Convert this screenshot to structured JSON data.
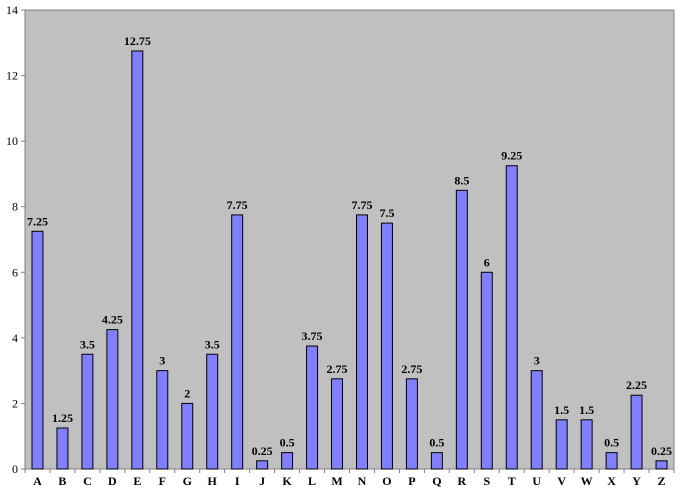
{
  "chart_data": {
    "type": "bar",
    "title": "",
    "xlabel": "",
    "ylabel": "",
    "categories": [
      "A",
      "B",
      "C",
      "D",
      "E",
      "F",
      "G",
      "H",
      "I",
      "J",
      "K",
      "L",
      "M",
      "N",
      "O",
      "P",
      "Q",
      "R",
      "S",
      "T",
      "U",
      "V",
      "W",
      "X",
      "Y",
      "Z"
    ],
    "values": [
      7.25,
      1.25,
      3.5,
      4.25,
      12.75,
      3,
      2,
      3.5,
      7.75,
      0.25,
      0.5,
      3.75,
      2.75,
      7.75,
      7.5,
      2.75,
      0.5,
      8.5,
      6,
      9.25,
      3,
      1.5,
      1.5,
      0.5,
      2.25,
      0.25
    ],
    "data_labels": [
      "7.25",
      "1.25",
      "3.5",
      "4.25",
      "12.75",
      "3",
      "2",
      "3.5",
      "7.75",
      "0.25",
      "0.5",
      "3.75",
      "2.75",
      "7.75",
      "7.5",
      "2.75",
      "0.5",
      "8.5",
      "6",
      "9.25",
      "3",
      "1.5",
      "1.5",
      "0.5",
      "2.25",
      "0.25"
    ],
    "ylim": [
      0,
      14
    ],
    "yticks": [
      0,
      2,
      4,
      6,
      8,
      10,
      12,
      14
    ],
    "ytick_labels": [
      "0",
      "2",
      "4",
      "6",
      "8",
      "10",
      "12",
      "14"
    ],
    "grid": false,
    "legend": "none",
    "colors": {
      "bar_fill": "#8080ff",
      "bar_stroke": "#000000",
      "plot_background": "#c0c0c0"
    }
  }
}
